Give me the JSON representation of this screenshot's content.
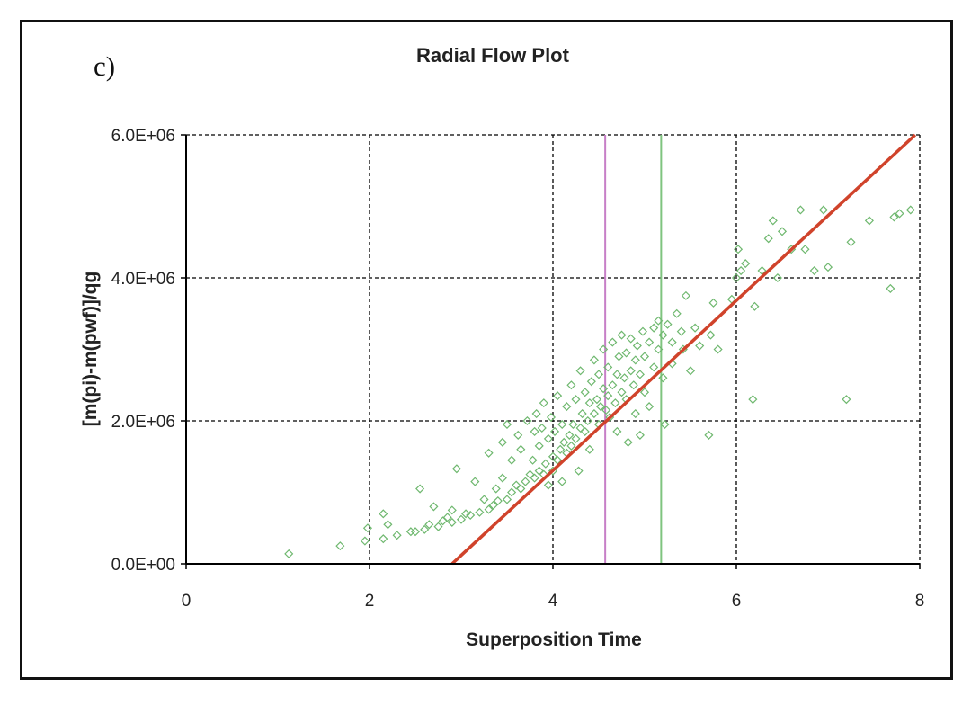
{
  "panel_label": "c)",
  "chart_data": {
    "type": "scatter",
    "title": "Radial Flow Plot",
    "xlabel": "Superposition Time",
    "ylabel": "[m(pi)-m(pwf)]/qg",
    "xlim": [
      0,
      8
    ],
    "ylim": [
      0,
      6000000
    ],
    "x_ticks": [
      0,
      2,
      4,
      6,
      8
    ],
    "y_ticks": [
      0,
      2000000,
      4000000,
      6000000
    ],
    "x_tick_labels": [
      "0",
      "2",
      "4",
      "6",
      "8"
    ],
    "y_tick_labels": [
      "0.0E+00",
      "2.0E+06",
      "4.0E+06",
      "6.0E+06"
    ],
    "grid": true,
    "grid_style": "dashed",
    "colors": {
      "points": "#6fb86f",
      "fit_line": "#d0432b",
      "marker_line_1": "#c77fc7",
      "marker_line_2": "#7fc47f",
      "grid": "#000000"
    },
    "marker": "diamond-open",
    "fit_line": {
      "x": [
        2.9,
        7.95
      ],
      "y": [
        0,
        6000000
      ]
    },
    "vertical_lines": [
      {
        "x": 4.57,
        "color": "#c77fc7"
      },
      {
        "x": 5.18,
        "color": "#7fc47f"
      }
    ],
    "points": [
      [
        1.12,
        140000
      ],
      [
        1.68,
        250000
      ],
      [
        1.95,
        320000
      ],
      [
        1.98,
        500000
      ],
      [
        2.15,
        350000
      ],
      [
        2.15,
        700000
      ],
      [
        2.2,
        550000
      ],
      [
        2.3,
        400000
      ],
      [
        2.45,
        450000
      ],
      [
        2.5,
        450000
      ],
      [
        2.55,
        1050000
      ],
      [
        2.6,
        480000
      ],
      [
        2.65,
        550000
      ],
      [
        2.7,
        800000
      ],
      [
        2.75,
        520000
      ],
      [
        2.8,
        600000
      ],
      [
        2.85,
        650000
      ],
      [
        2.9,
        580000
      ],
      [
        2.9,
        750000
      ],
      [
        2.95,
        1330000
      ],
      [
        3.0,
        620000
      ],
      [
        3.05,
        700000
      ],
      [
        3.1,
        680000
      ],
      [
        3.15,
        1150000
      ],
      [
        3.2,
        720000
      ],
      [
        3.25,
        900000
      ],
      [
        3.3,
        760000
      ],
      [
        3.3,
        1550000
      ],
      [
        3.35,
        820000
      ],
      [
        3.38,
        1050000
      ],
      [
        3.4,
        880000
      ],
      [
        3.45,
        1200000
      ],
      [
        3.45,
        1700000
      ],
      [
        3.5,
        900000
      ],
      [
        3.5,
        1950000
      ],
      [
        3.55,
        1000000
      ],
      [
        3.55,
        1450000
      ],
      [
        3.6,
        1100000
      ],
      [
        3.62,
        1800000
      ],
      [
        3.65,
        1050000
      ],
      [
        3.65,
        1600000
      ],
      [
        3.7,
        1150000
      ],
      [
        3.72,
        2000000
      ],
      [
        3.75,
        1250000
      ],
      [
        3.78,
        1450000
      ],
      [
        3.8,
        1200000
      ],
      [
        3.8,
        1850000
      ],
      [
        3.82,
        2100000
      ],
      [
        3.85,
        1300000
      ],
      [
        3.85,
        1650000
      ],
      [
        3.88,
        1900000
      ],
      [
        3.9,
        1250000
      ],
      [
        3.9,
        2250000
      ],
      [
        3.92,
        1400000
      ],
      [
        3.95,
        1750000
      ],
      [
        3.95,
        1100000
      ],
      [
        3.98,
        2050000
      ],
      [
        4.0,
        1300000
      ],
      [
        4.0,
        1500000
      ],
      [
        4.02,
        1850000
      ],
      [
        4.05,
        1450000
      ],
      [
        4.05,
        2350000
      ],
      [
        4.08,
        1600000
      ],
      [
        4.1,
        1150000
      ],
      [
        4.1,
        1950000
      ],
      [
        4.12,
        1700000
      ],
      [
        4.15,
        1550000
      ],
      [
        4.15,
        2200000
      ],
      [
        4.18,
        1800000
      ],
      [
        4.2,
        1650000
      ],
      [
        4.2,
        2500000
      ],
      [
        4.22,
        1950000
      ],
      [
        4.25,
        1750000
      ],
      [
        4.25,
        2300000
      ],
      [
        4.28,
        1300000
      ],
      [
        4.3,
        1900000
      ],
      [
        4.3,
        2700000
      ],
      [
        4.32,
        2100000
      ],
      [
        4.35,
        1850000
      ],
      [
        4.35,
        2400000
      ],
      [
        4.38,
        2000000
      ],
      [
        4.4,
        2250000
      ],
      [
        4.4,
        1600000
      ],
      [
        4.42,
        2550000
      ],
      [
        4.45,
        2100000
      ],
      [
        4.45,
        2850000
      ],
      [
        4.48,
        2300000
      ],
      [
        4.5,
        1950000
      ],
      [
        4.5,
        2650000
      ],
      [
        4.52,
        2200000
      ],
      [
        4.55,
        2450000
      ],
      [
        4.55,
        3000000
      ],
      [
        4.58,
        2150000
      ],
      [
        4.6,
        2350000
      ],
      [
        4.6,
        2750000
      ],
      [
        4.62,
        2050000
      ],
      [
        4.65,
        2500000
      ],
      [
        4.65,
        3100000
      ],
      [
        4.68,
        2250000
      ],
      [
        4.7,
        2650000
      ],
      [
        4.7,
        1850000
      ],
      [
        4.72,
        2900000
      ],
      [
        4.75,
        2400000
      ],
      [
        4.75,
        3200000
      ],
      [
        4.78,
        2600000
      ],
      [
        4.8,
        2300000
      ],
      [
        4.8,
        2950000
      ],
      [
        4.82,
        1700000
      ],
      [
        4.85,
        2700000
      ],
      [
        4.85,
        3150000
      ],
      [
        4.88,
        2500000
      ],
      [
        4.9,
        2850000
      ],
      [
        4.9,
        2100000
      ],
      [
        4.92,
        3050000
      ],
      [
        4.95,
        2650000
      ],
      [
        4.95,
        1800000
      ],
      [
        4.98,
        3250000
      ],
      [
        5.0,
        2900000
      ],
      [
        5.0,
        2400000
      ],
      [
        5.05,
        3100000
      ],
      [
        5.05,
        2200000
      ],
      [
        5.1,
        3300000
      ],
      [
        5.1,
        2750000
      ],
      [
        5.15,
        3000000
      ],
      [
        5.15,
        3400000
      ],
      [
        5.2,
        3200000
      ],
      [
        5.2,
        2600000
      ],
      [
        5.22,
        1950000
      ],
      [
        5.25,
        3350000
      ],
      [
        5.3,
        3100000
      ],
      [
        5.3,
        2800000
      ],
      [
        5.35,
        3500000
      ],
      [
        5.4,
        3250000
      ],
      [
        5.42,
        3000000
      ],
      [
        5.45,
        3750000
      ],
      [
        5.5,
        2700000
      ],
      [
        5.55,
        3300000
      ],
      [
        5.6,
        3050000
      ],
      [
        5.7,
        1800000
      ],
      [
        5.72,
        3200000
      ],
      [
        5.75,
        3650000
      ],
      [
        5.8,
        3000000
      ],
      [
        5.95,
        3700000
      ],
      [
        6.0,
        4000000
      ],
      [
        6.02,
        4400000
      ],
      [
        6.05,
        4100000
      ],
      [
        6.1,
        4200000
      ],
      [
        6.18,
        2300000
      ],
      [
        6.2,
        3600000
      ],
      [
        6.28,
        4100000
      ],
      [
        6.35,
        4550000
      ],
      [
        6.4,
        4800000
      ],
      [
        6.45,
        4000000
      ],
      [
        6.5,
        4650000
      ],
      [
        6.6,
        4400000
      ],
      [
        6.7,
        4950000
      ],
      [
        6.75,
        4400000
      ],
      [
        6.85,
        4100000
      ],
      [
        6.95,
        4950000
      ],
      [
        7.0,
        4150000
      ],
      [
        7.2,
        2300000
      ],
      [
        7.25,
        4500000
      ],
      [
        7.45,
        4800000
      ],
      [
        7.68,
        3850000
      ],
      [
        7.72,
        4850000
      ],
      [
        7.78,
        4900000
      ],
      [
        7.9,
        4950000
      ]
    ]
  }
}
